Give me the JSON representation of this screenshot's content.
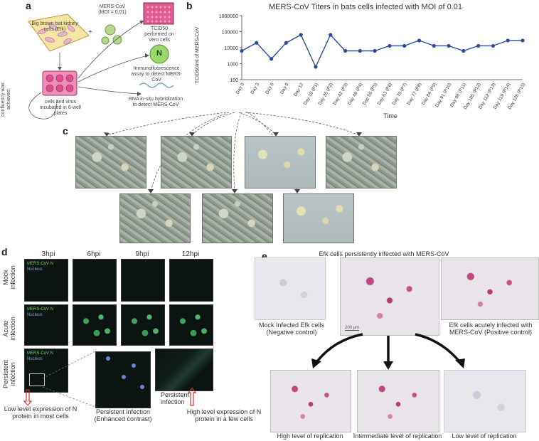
{
  "panels": {
    "a": "a",
    "b": "b",
    "c": "c",
    "d": "d",
    "e": "e"
  },
  "panel_a": {
    "bat_cells": "Big brown bat kidney cells (Efk)",
    "virus": "MERS-CoV (MOI = 0.01)",
    "plus": "+",
    "tcid": "TCID50 performed on Vero cells",
    "n_letter": "N",
    "ifa": "Immunofluorescence assay to detect MERS-CoV",
    "rna": "RNA in-situ hybridization to detect MERS-CoV",
    "plate": "cells and virus incubated in 6-well plates",
    "passaged": "Cells passaged when confluency was achieved"
  },
  "chart_data": {
    "type": "line",
    "title": "MERS-CoV Titers in bats cells infected with MOI of 0.01",
    "xlabel": "Time",
    "ylabel": "TCID50/ml of MERS-CoV",
    "yscale": "log",
    "ylim": [
      100,
      1000000
    ],
    "y_ticks": [
      "100",
      "1000",
      "10000",
      "100000",
      "1000000"
    ],
    "categories": [
      "Day 0",
      "Day 3",
      "Day 6",
      "Day 9",
      "Day 12",
      "Day 18 (P1)",
      "Day 35 (P2)",
      "Day 42 (P3)",
      "Day 49 (P4)",
      "Day 56 (P5)",
      "Day 63 (P6)",
      "Day 70 (P7)",
      "Day 77 (P8)",
      "Day 84 (P9)",
      "Day 91 (P10)",
      "Day 98 (P11)",
      "Day 105 (P12)",
      "Day 112 (P13)",
      "Day 119 (P14)",
      "Day 126 (P15)"
    ],
    "values": [
      6300,
      20000,
      2000,
      20000,
      63000,
      630,
      63000,
      6300,
      6300,
      6300,
      13000,
      13000,
      28000,
      13000,
      13000,
      6300,
      13000,
      13000,
      28000,
      28000
    ],
    "color": "#2e4aa0"
  },
  "panel_d": {
    "hpi": [
      "3hpi",
      "6hpi",
      "9hpi",
      "12hpi"
    ],
    "rows": [
      "Mock infection",
      "Acute infection",
      "Persistent infection"
    ],
    "fl_label": "MERS-CoV N",
    "fl_nucleus": "Nucleus",
    "enhanced": "Persistent infection (Enhanced contrast)",
    "persistent": "Persistent infection",
    "low_expr": "Low level expression of N protein in most cells",
    "high_expr": "High level expression of N protein in a few cells"
  },
  "panel_e": {
    "title": "Efk cells persistently infected with MERS-CoV",
    "mock": "Mock Infected Efk cells (Negative control)",
    "acute": "Efk cells acutely infected with MERS-CoV (Positive control)",
    "scale": "200 μm",
    "high": "High level of replication",
    "intermediate": "Intermediate level of replication",
    "low": "Low level of replication"
  }
}
